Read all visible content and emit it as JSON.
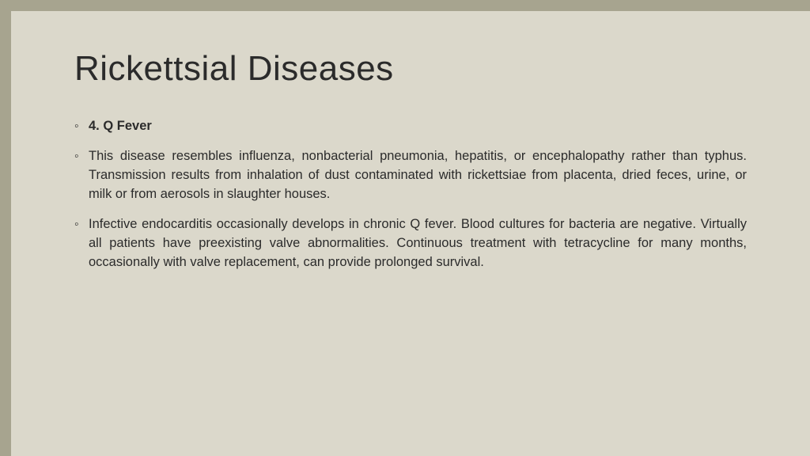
{
  "slide": {
    "title": "Rickettsial Diseases",
    "bullets": [
      {
        "text": "4. Q Fever",
        "bold": true
      },
      {
        "text": "This disease resembles influenza, nonbacterial pneumonia, hepatitis, or encephalopathy rather than typhus. Transmission results from inhalation of dust contaminated with rickettsiae from placenta, dried feces, urine, or milk or from aerosols in slaughter houses.",
        "bold": false
      },
      {
        "text": "Infective endocarditis occasionally develops in chronic Q fever. Blood cultures for bacteria are negative. Virtually all patients have preexisting valve abnormalities. Continuous treatment with tetracycline for many months, occasionally with valve replacement, can provide prolonged survival.",
        "bold": false
      }
    ],
    "colors": {
      "background": "#dbd8cb",
      "border": "#a7a48f",
      "text": "#2b2b2b"
    },
    "title_fontsize": 44,
    "body_fontsize": 16.5
  }
}
